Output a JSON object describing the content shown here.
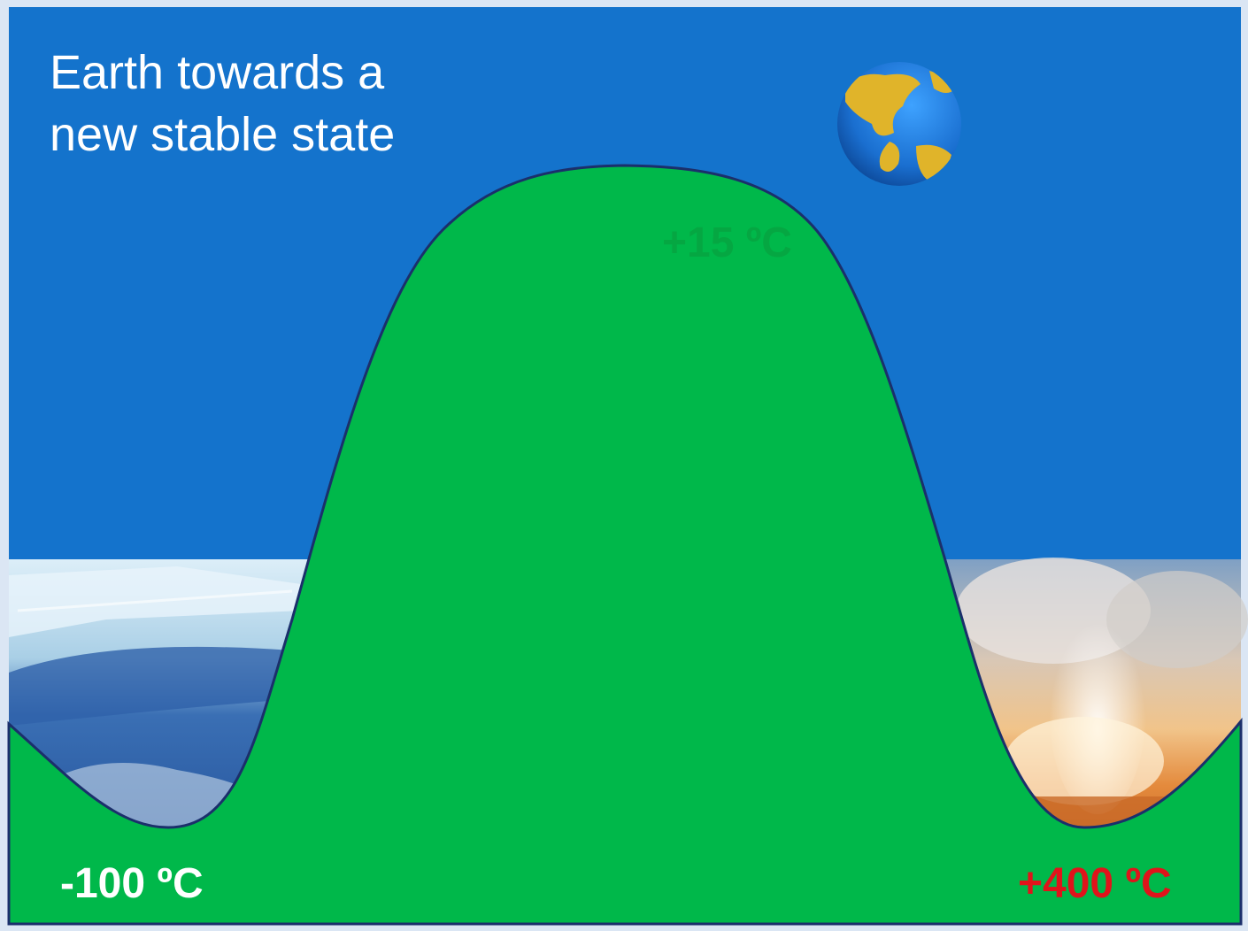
{
  "title": {
    "line1": "Earth towards a",
    "line2": "new stable state"
  },
  "labels": {
    "cold": "-100 ºC",
    "peak": "+15 ºC",
    "hot": "+400 ºC"
  },
  "icons": {
    "globe": "earth-globe-icon",
    "cold_scene": "ice-field-image",
    "hot_scene": "geyser-image"
  },
  "colors": {
    "sky": "#1473cc",
    "hill": "#00b84a",
    "hill_outline": "#1b2f6b",
    "cold_label": "#ffffff",
    "peak_label": "#0a9a3c",
    "hot_label": "#e0141b"
  }
}
